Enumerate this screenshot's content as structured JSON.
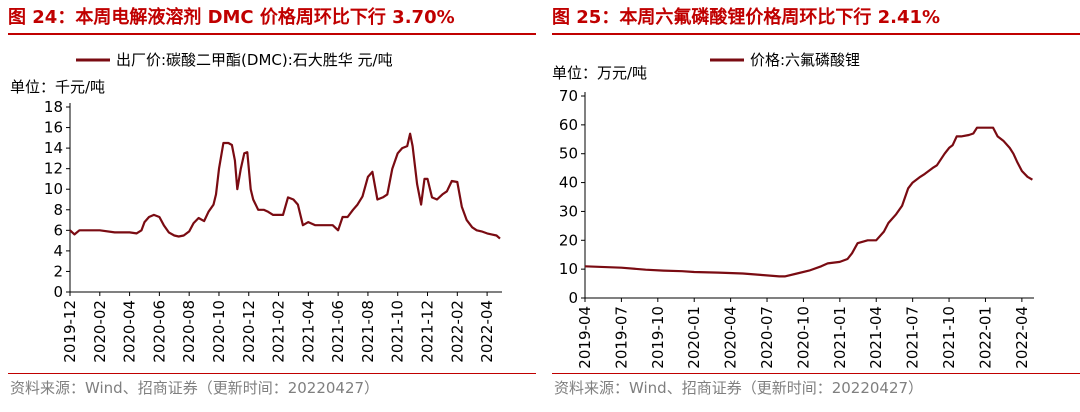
{
  "colors": {
    "title": "#c00000",
    "line": "#7a0b12",
    "source": "#7f7f7f"
  },
  "charts": {
    "left": {
      "title": "图 24：本周电解液溶剂 DMC 价格周环比下行 3.70%",
      "unit": "单位：千元/吨",
      "source": "资料来源：Wind、招商证券（更新时间：20220427）"
    },
    "right": {
      "title": "图 25：本周六氟磷酸锂价格周环比下行 2.41%",
      "unit": "单位：万元/吨",
      "source": "资料来源：Wind、招商证券（更新时间：20220427）"
    }
  },
  "chart_data": [
    {
      "type": "line",
      "title": "图 24：本周电解液溶剂 DMC 价格周环比下行 3.70%",
      "ylabel": "单位：千元/吨",
      "xlabel": "",
      "ylim": [
        0,
        18
      ],
      "yticks": [
        0,
        2,
        4,
        6,
        8,
        10,
        12,
        14,
        16,
        18
      ],
      "xlim": [
        "2019-12",
        "2022-05"
      ],
      "xticks": [
        "2019-12",
        "2020-02",
        "2020-04",
        "2020-06",
        "2020-08",
        "2020-10",
        "2020-12",
        "2021-02",
        "2021-04",
        "2021-06",
        "2021-08",
        "2021-10",
        "2021-12",
        "2022-02",
        "2022-04"
      ],
      "legend": "top",
      "grid": false,
      "series": [
        {
          "name": "出厂价:碳酸二甲酯(DMC):石大胜华 元/吨",
          "x": [
            "2019-12-01",
            "2019-12-10",
            "2019-12-20",
            "2020-01-01",
            "2020-01-15",
            "2020-02-01",
            "2020-03-01",
            "2020-03-15",
            "2020-04-01",
            "2020-04-15",
            "2020-04-25",
            "2020-05-01",
            "2020-05-10",
            "2020-05-20",
            "2020-06-01",
            "2020-06-10",
            "2020-06-20",
            "2020-07-01",
            "2020-07-10",
            "2020-07-20",
            "2020-08-01",
            "2020-08-10",
            "2020-08-20",
            "2020-09-01",
            "2020-09-10",
            "2020-09-20",
            "2020-09-25",
            "2020-10-01",
            "2020-10-10",
            "2020-10-20",
            "2020-10-27",
            "2020-11-03",
            "2020-11-08",
            "2020-11-15",
            "2020-11-22",
            "2020-11-28",
            "2020-12-05",
            "2020-12-10",
            "2020-12-20",
            "2021-01-01",
            "2021-01-10",
            "2021-01-20",
            "2021-02-01",
            "2021-02-10",
            "2021-02-20",
            "2021-03-01",
            "2021-03-10",
            "2021-03-20",
            "2021-04-01",
            "2021-04-15",
            "2021-05-01",
            "2021-05-20",
            "2021-06-01",
            "2021-06-10",
            "2021-06-20",
            "2021-07-01",
            "2021-07-10",
            "2021-07-20",
            "2021-08-01",
            "2021-08-10",
            "2021-08-20",
            "2021-09-01",
            "2021-09-10",
            "2021-09-20",
            "2021-10-01",
            "2021-10-10",
            "2021-10-20",
            "2021-10-26",
            "2021-11-01",
            "2021-11-10",
            "2021-11-18",
            "2021-11-25",
            "2021-12-01",
            "2021-12-10",
            "2021-12-20",
            "2022-01-01",
            "2022-01-10",
            "2022-01-20",
            "2022-02-01",
            "2022-02-10",
            "2022-02-20",
            "2022-03-01",
            "2022-03-10",
            "2022-03-20",
            "2022-04-01",
            "2022-04-10",
            "2022-04-20",
            "2022-04-27"
          ],
          "values": [
            6.0,
            5.6,
            6.0,
            6.0,
            6.0,
            6.0,
            5.8,
            5.8,
            5.8,
            5.7,
            6.0,
            6.8,
            7.3,
            7.5,
            7.3,
            6.5,
            5.8,
            5.5,
            5.4,
            5.5,
            5.9,
            6.7,
            7.2,
            6.9,
            7.8,
            8.5,
            9.5,
            12.0,
            14.5,
            14.5,
            14.3,
            12.8,
            10.0,
            12.0,
            13.5,
            13.6,
            10.0,
            9.0,
            8.0,
            8.0,
            7.8,
            7.5,
            7.5,
            7.5,
            9.2,
            9.0,
            8.5,
            6.5,
            6.8,
            6.5,
            6.5,
            6.5,
            6.0,
            7.3,
            7.3,
            8.0,
            8.5,
            9.3,
            11.2,
            11.7,
            9.0,
            9.2,
            9.5,
            12.0,
            13.5,
            14.0,
            14.2,
            15.4,
            14.2,
            10.5,
            8.5,
            11.0,
            11.0,
            9.2,
            9.0,
            9.5,
            9.8,
            10.8,
            10.7,
            8.3,
            7.0,
            6.3,
            6.0,
            5.9,
            5.7,
            5.6,
            5.5,
            5.2
          ]
        }
      ]
    },
    {
      "type": "line",
      "title": "图 25：本周六氟磷酸锂价格周环比下行 2.41%",
      "ylabel": "单位：万元/吨",
      "xlabel": "",
      "ylim": [
        0,
        70
      ],
      "yticks": [
        0,
        10,
        20,
        30,
        40,
        50,
        60,
        70
      ],
      "xlim": [
        "2019-04",
        "2022-05"
      ],
      "xticks": [
        "2019-04",
        "2019-07",
        "2019-10",
        "2020-01",
        "2020-04",
        "2020-07",
        "2020-10",
        "2021-01",
        "2021-04",
        "2021-07",
        "2021-10",
        "2022-01",
        "2022-04"
      ],
      "legend": "top",
      "grid": false,
      "series": [
        {
          "name": "价格:六氟磷酸锂",
          "x": [
            "2019-04-01",
            "2019-07-01",
            "2019-09-01",
            "2019-10-15",
            "2019-12-01",
            "2020-01-01",
            "2020-03-01",
            "2020-05-01",
            "2020-06-15",
            "2020-08-01",
            "2020-08-15",
            "2020-09-15",
            "2020-10-15",
            "2020-11-15",
            "2020-12-01",
            "2021-01-01",
            "2021-01-20",
            "2021-02-01",
            "2021-02-15",
            "2021-03-10",
            "2021-04-01",
            "2021-04-20",
            "2021-05-01",
            "2021-05-20",
            "2021-06-05",
            "2021-06-20",
            "2021-07-01",
            "2021-07-20",
            "2021-08-01",
            "2021-08-20",
            "2021-09-01",
            "2021-09-20",
            "2021-10-01",
            "2021-10-10",
            "2021-10-20",
            "2021-11-01",
            "2021-11-20",
            "2021-12-01",
            "2021-12-10",
            "2022-01-01",
            "2022-01-20",
            "2022-02-01",
            "2022-02-15",
            "2022-03-01",
            "2022-03-10",
            "2022-03-20",
            "2022-04-01",
            "2022-04-15",
            "2022-04-27"
          ],
          "values": [
            11.0,
            10.5,
            9.8,
            9.5,
            9.3,
            9.0,
            8.8,
            8.5,
            8.0,
            7.5,
            7.5,
            8.5,
            9.5,
            11.0,
            12.0,
            12.5,
            13.5,
            15.5,
            19.0,
            20.0,
            20.0,
            23.0,
            26.0,
            29.0,
            32.0,
            38.0,
            40.0,
            42.0,
            43.0,
            45.0,
            46.0,
            50.0,
            52.0,
            53.0,
            56.0,
            56.0,
            56.5,
            57.0,
            59.0,
            59.0,
            59.0,
            56.0,
            54.5,
            52.0,
            50.0,
            47.0,
            44.0,
            42.0,
            41.0
          ]
        }
      ]
    }
  ]
}
